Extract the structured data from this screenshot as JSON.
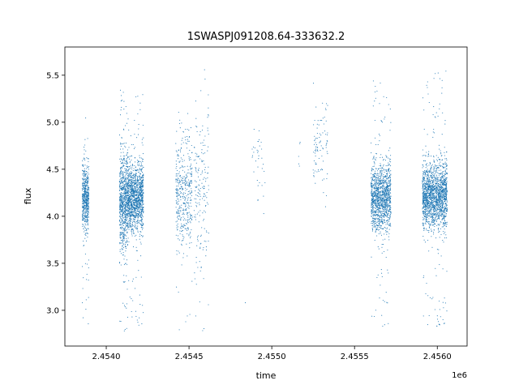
{
  "chart_data": {
    "type": "scatter",
    "title": "1SWASPJ091208.64-333632.2",
    "xlabel": "time",
    "ylabel": "flux",
    "x_offset_label": "1e6",
    "xlim": [
      2453750,
      2456180
    ],
    "ylim": [
      2.62,
      5.8
    ],
    "x_ticks": [
      2454000,
      2454500,
      2455000,
      2455500,
      2456000
    ],
    "x_tick_labels": [
      "2.4540",
      "2.4545",
      "2.4550",
      "2.4555",
      "2.4560"
    ],
    "y_ticks": [
      3.0,
      3.5,
      4.0,
      4.5,
      5.0,
      5.5
    ],
    "y_tick_labels": [
      "3.0",
      "3.5",
      "4.0",
      "4.5",
      "5.0",
      "5.5"
    ],
    "grid": false,
    "point_color": "#1f77b4",
    "series": [
      {
        "clusters": [
          {
            "x_range": [
              2453855,
              2453895
            ],
            "y_center": 4.2,
            "y_sd": 0.17,
            "count": 550,
            "y_min": 2.8,
            "y_max": 5.05
          },
          {
            "x_range": [
              2454080,
              2454130
            ],
            "y_center": 4.15,
            "y_sd": 0.25,
            "count": 750,
            "y_min": 2.75,
            "y_max": 5.4
          },
          {
            "x_range": [
              2454130,
              2454225
            ],
            "y_center": 4.2,
            "y_sd": 0.17,
            "count": 1300,
            "y_min": 2.8,
            "y_max": 5.3
          },
          {
            "x_range": [
              2454420,
              2454520
            ],
            "y_center": 4.25,
            "y_sd": 0.3,
            "count": 420,
            "y_min": 2.75,
            "y_max": 5.25
          },
          {
            "x_range": [
              2454530,
              2454620
            ],
            "y_center": 4.25,
            "y_sd": 0.45,
            "count": 180,
            "y_min": 2.75,
            "y_max": 5.65
          },
          {
            "x_range": [
              2454880,
              2454960
            ],
            "y_center": 4.55,
            "y_sd": 0.25,
            "count": 35,
            "y_min": 3.95,
            "y_max": 5.0
          },
          {
            "x_range": [
              2455160,
              2455175
            ],
            "y_center": 4.6,
            "y_sd": 0.1,
            "count": 5,
            "y_min": 4.4,
            "y_max": 4.8
          },
          {
            "x_range": [
              2455250,
              2455340
            ],
            "y_center": 4.7,
            "y_sd": 0.25,
            "count": 90,
            "y_min": 4.05,
            "y_max": 5.45
          },
          {
            "x_range": [
              2455600,
              2455720
            ],
            "y_center": 4.2,
            "y_sd": 0.17,
            "count": 1300,
            "y_min": 2.8,
            "y_max": 5.5
          },
          {
            "x_range": [
              2455910,
              2456060
            ],
            "y_center": 4.22,
            "y_sd": 0.17,
            "count": 1800,
            "y_min": 2.8,
            "y_max": 5.55
          }
        ],
        "isolated_points": [
          {
            "x": 2454840,
            "y": 3.08
          }
        ]
      }
    ]
  }
}
